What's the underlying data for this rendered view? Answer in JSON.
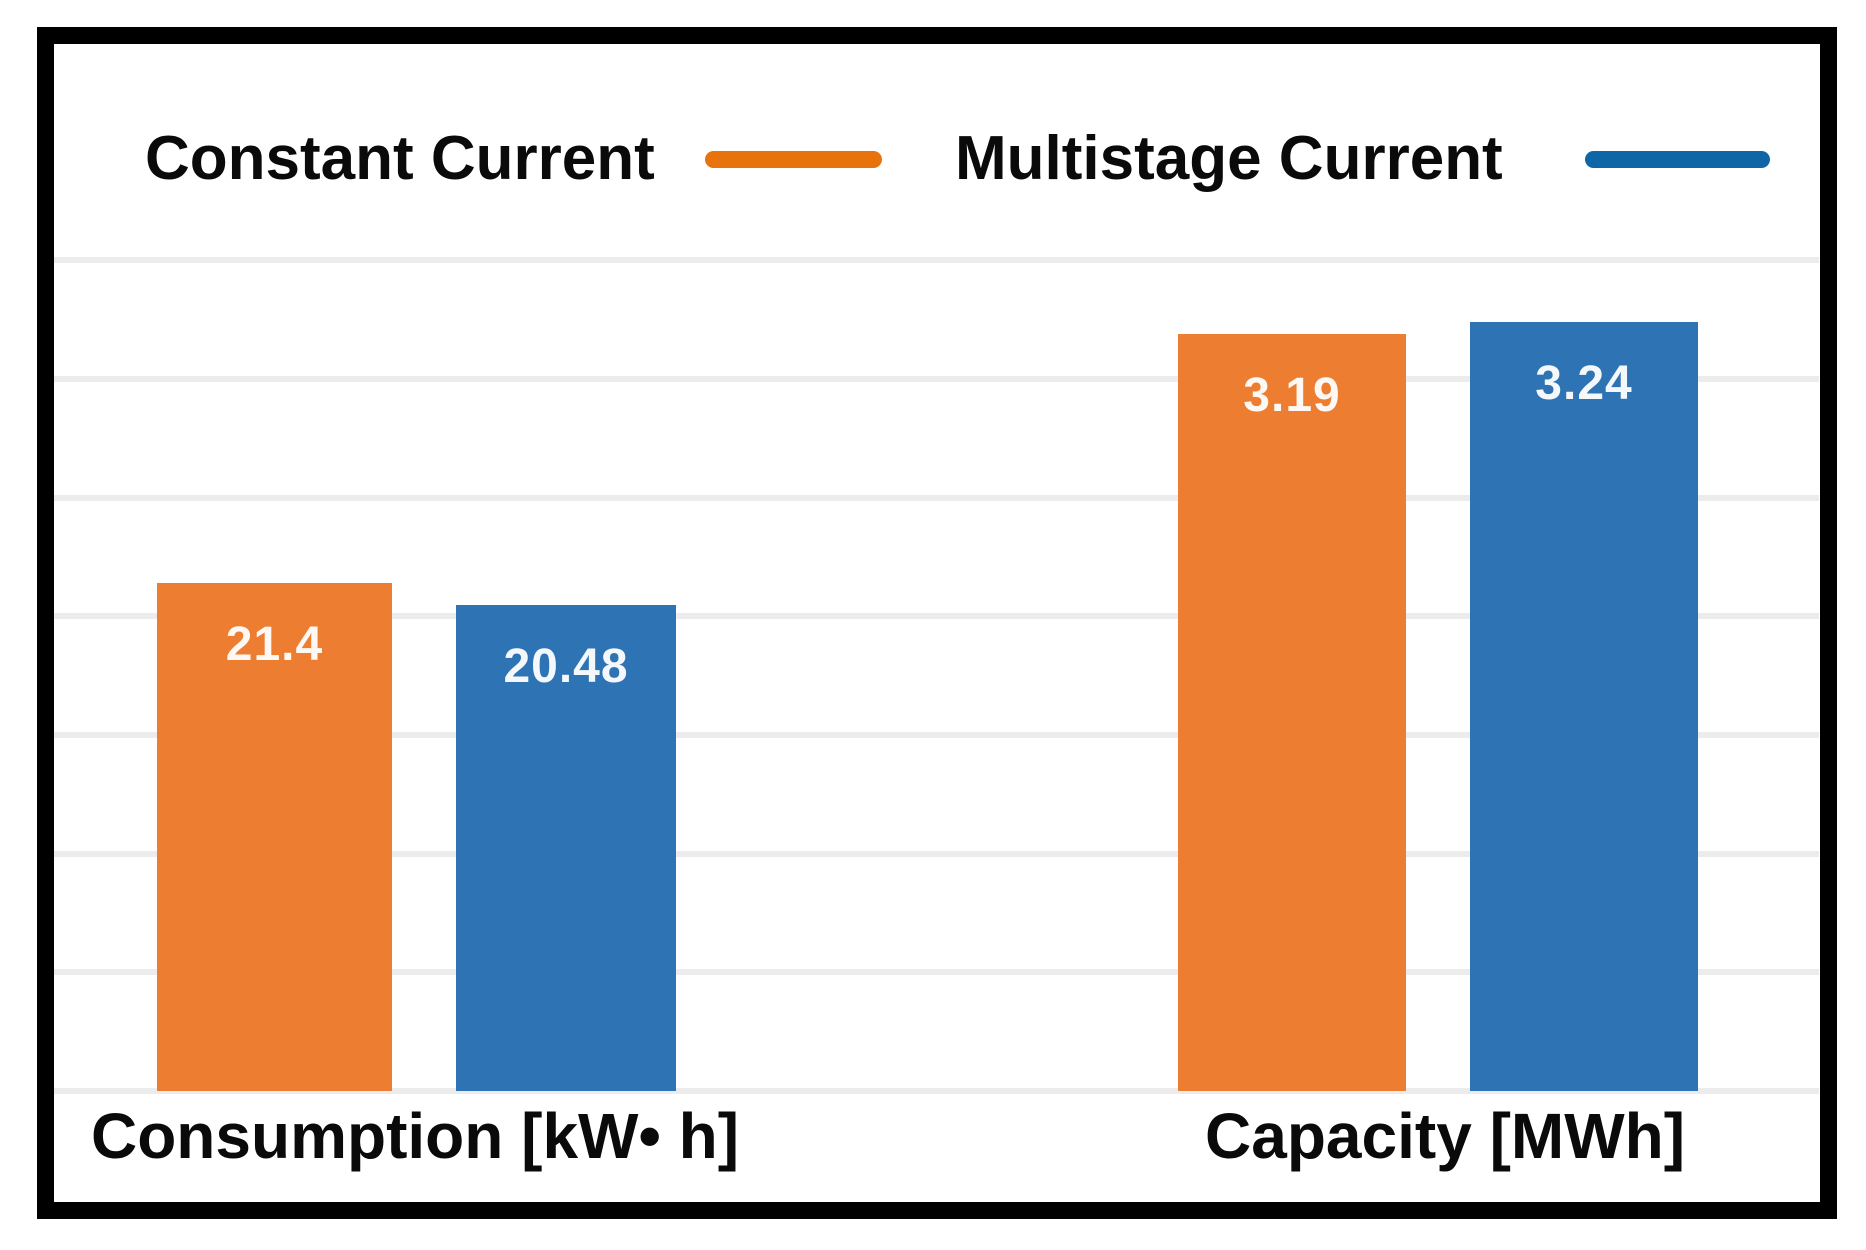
{
  "legend": {
    "items": [
      {
        "label": "Constant Current",
        "line_color": "#E8730D"
      },
      {
        "label": "Multistage Current",
        "line_color": "#0E66A6"
      }
    ]
  },
  "chart_data": {
    "type": "bar",
    "categories": [
      "Consumption [kW• h]",
      "Capacity [MWh]"
    ],
    "series": [
      {
        "name": "Constant Current",
        "color": "#ED7D31",
        "values": [
          21.4,
          3.19
        ]
      },
      {
        "name": "Multistage Current",
        "color": "#2E74B5",
        "values": [
          20.48,
          3.24
        ]
      }
    ],
    "data_labels": [
      "21.4",
      "20.48",
      "3.19",
      "3.24"
    ],
    "data_label_color": "#FFFFFF",
    "legend_position": "top",
    "grid": "horizontal",
    "gridline_color": "#ECECEC",
    "axis_tick_labels_shown": false,
    "frame_color": "#000000",
    "background_color": "#FFFFFF"
  }
}
